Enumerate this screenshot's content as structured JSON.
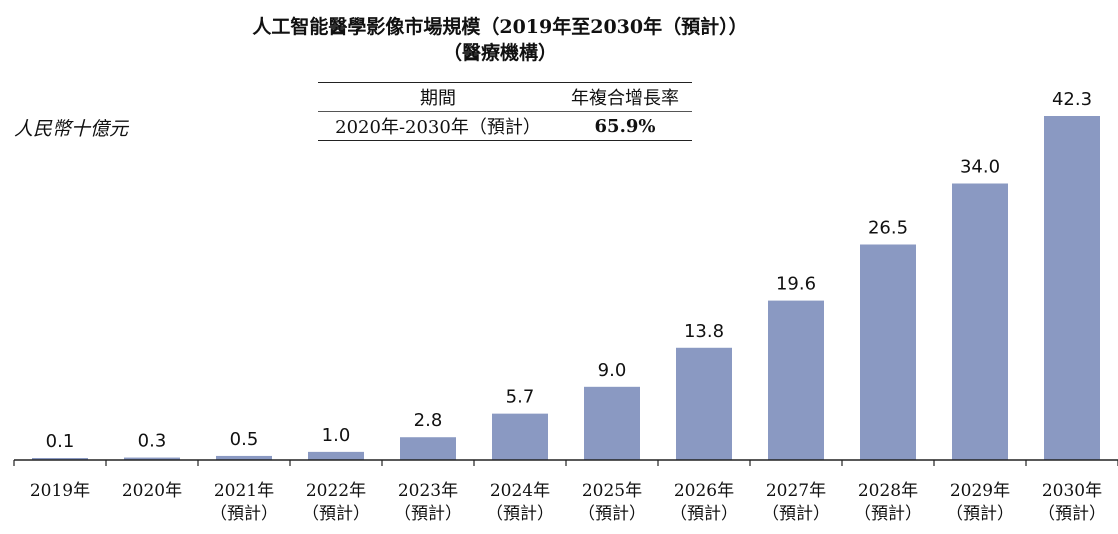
{
  "header": {
    "title": "人工智能醫學影像市場規模（2019年至2030年（預計））",
    "subtitle": "（醫療機構）"
  },
  "unit_label": "人民幣十億元",
  "cagr_table": {
    "col_period": "期間",
    "col_cagr": "年複合增長率",
    "period": "2020年-2030年（預計）",
    "cagr": "65.9%"
  },
  "chart_data": {
    "type": "bar",
    "title": "人工智能醫學影像市場規模（2019年至2030年（預計））",
    "subtitle": "（醫療機構）",
    "ylabel": "人民幣十億元",
    "categories": [
      "2019年",
      "2020年",
      "2021年",
      "2022年",
      "2023年",
      "2024年",
      "2025年",
      "2026年",
      "2027年",
      "2028年",
      "2029年",
      "2030年"
    ],
    "forecast_flags": [
      false,
      false,
      true,
      true,
      true,
      true,
      true,
      true,
      true,
      true,
      true,
      true
    ],
    "forecast_label": "（預計）",
    "values": [
      0.1,
      0.3,
      0.5,
      1.0,
      2.8,
      5.7,
      9.0,
      13.8,
      19.6,
      26.5,
      34.0,
      42.3
    ],
    "value_labels": [
      "0.1",
      "0.3",
      "0.5",
      "1.0",
      "2.8",
      "5.7",
      "9.0",
      "13.8",
      "19.6",
      "26.5",
      "34.0",
      "42.3"
    ],
    "ylim": [
      0,
      42.3
    ],
    "grid": false,
    "legend": "none",
    "bar_color": "#8a99c2"
  }
}
